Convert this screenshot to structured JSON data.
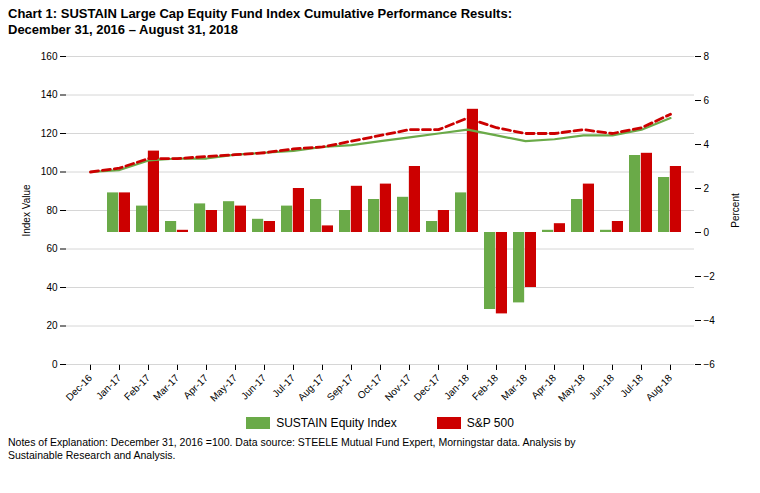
{
  "chart_data": {
    "type": "bar",
    "title": "Chart 1:  SUSTAIN Large Cap Equity Fund Index Cumulative Performance Results:",
    "subtitle": "December 31, 2016 – August 31, 2018",
    "ylabel": "Index Value",
    "y2label": "Percent",
    "annotations": [
      "Notes of Explanation:  December 31, 2016 =100.  Data source:  STEELE Mutual Fund Expert, Morningstar data. Analysis by\nSustainable Research and Analysis."
    ],
    "categories": [
      "Dec-16",
      "Jan-17",
      "Feb-17",
      "Mar-17",
      "Apr-17",
      "May-17",
      "Jun-17",
      "Jul-17",
      "Aug-17",
      "Sep-17",
      "Oct-17",
      "Nov-17",
      "Dec-17",
      "Jan-18",
      "Feb-18",
      "Mar-18",
      "Apr-18",
      "May-18",
      "Jun-18",
      "Jul-18",
      "Aug-18"
    ],
    "series": [
      {
        "name": "SUSTAIN Equity Index",
        "type": "bar",
        "axis": "y2",
        "color": "#6aaa48",
        "values": [
          0,
          1.8,
          1.2,
          0.5,
          1.3,
          1.4,
          0.6,
          1.2,
          1.5,
          1.0,
          1.5,
          1.6,
          0.5,
          1.8,
          -3.5,
          -3.2,
          0.1,
          1.5,
          0.1,
          3.5,
          2.5
        ]
      },
      {
        "name": "S&P 500",
        "type": "bar",
        "axis": "y2",
        "color": "#cc0000",
        "values": [
          0,
          1.8,
          3.7,
          0.1,
          1.0,
          1.2,
          0.5,
          2.0,
          0.3,
          2.1,
          2.2,
          3.0,
          1.0,
          5.6,
          -3.7,
          -2.5,
          0.4,
          2.2,
          0.5,
          3.6,
          3.0
        ]
      },
      {
        "name": "SUSTAIN Equity Index",
        "type": "line",
        "line_style": "solid",
        "color": "#6aaa48",
        "values": [
          100,
          101,
          106,
          107,
          107,
          109,
          110,
          111,
          113,
          114,
          116,
          118,
          120,
          122,
          119,
          116,
          117,
          119,
          119,
          122,
          128
        ]
      },
      {
        "name": "S&P 500",
        "type": "line",
        "line_style": "dashed",
        "color": "#cc0000",
        "values": [
          100,
          102,
          107,
          107,
          108,
          109,
          110,
          112,
          113,
          116,
          119,
          122,
          122,
          128,
          123,
          120,
          120,
          122,
          120,
          123,
          130
        ]
      }
    ],
    "ylim": [
      0,
      160
    ],
    "yticks": [
      0,
      20,
      40,
      60,
      80,
      100,
      120,
      140,
      160
    ],
    "y2lim": [
      -6,
      8
    ],
    "y2ticks": [
      -6,
      -4,
      -2,
      0,
      2,
      4,
      6,
      8
    ],
    "grid": true,
    "legend": "bottom"
  }
}
